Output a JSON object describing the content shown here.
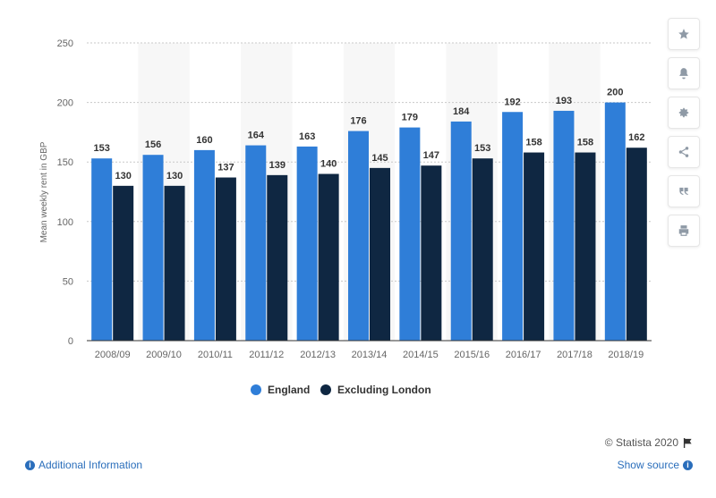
{
  "chart_data": {
    "type": "bar",
    "categories": [
      "2008/09",
      "2009/10",
      "2010/11",
      "2011/12",
      "2012/13",
      "2013/14",
      "2014/15",
      "2015/16",
      "2016/17",
      "2017/18",
      "2018/19"
    ],
    "series": [
      {
        "name": "England",
        "values": [
          153,
          156,
          160,
          164,
          163,
          176,
          179,
          184,
          192,
          193,
          200
        ],
        "color": "#2f7ed8"
      },
      {
        "name": "Excluding London",
        "values": [
          130,
          130,
          137,
          139,
          140,
          145,
          147,
          153,
          158,
          158,
          162
        ],
        "color": "#0f2742"
      }
    ],
    "ylabel": "Mean weekly rent in GBP",
    "xlabel": "",
    "ylim": [
      0,
      250
    ],
    "yticks": [
      0,
      50,
      100,
      150,
      200,
      250
    ],
    "grid": true,
    "legend": "bottom-center"
  },
  "sidebar": {
    "buttons": [
      "star-icon",
      "bell-icon",
      "gear-icon",
      "share-icon",
      "quote-icon",
      "print-icon"
    ]
  },
  "footer": {
    "additional_info": "Additional Information",
    "show_source": "Show source",
    "copyright": "© Statista 2020"
  }
}
